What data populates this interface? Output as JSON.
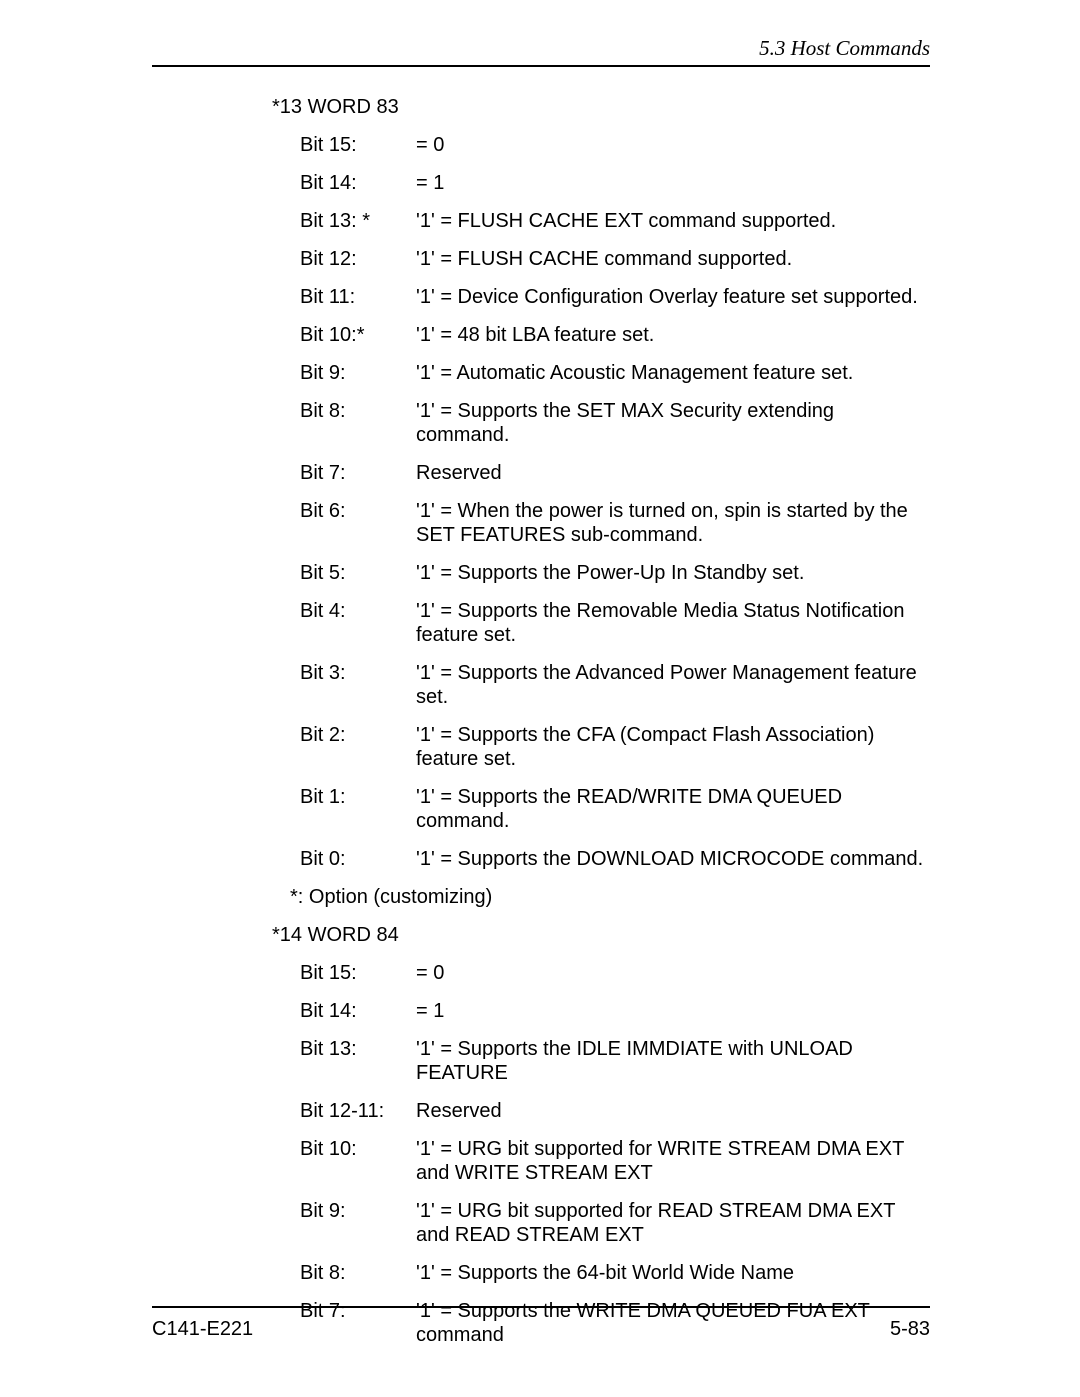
{
  "header": {
    "section": "5.3  Host Commands"
  },
  "words": [
    {
      "title": "*13 WORD 83",
      "bits": [
        {
          "label": "Bit 15:",
          "desc": "= 0"
        },
        {
          "label": "Bit 14:",
          "desc": "= 1"
        },
        {
          "label": "Bit 13: *",
          "desc": "'1' = FLUSH CACHE EXT command supported."
        },
        {
          "label": "Bit 12:",
          "desc": "'1' = FLUSH CACHE command supported."
        },
        {
          "label": "Bit 11:",
          "desc": "'1' = Device Configuration Overlay feature set supported."
        },
        {
          "label": "Bit 10:*",
          "desc": "'1' = 48 bit LBA feature set."
        },
        {
          "label": "Bit 9:",
          "desc": "'1' = Automatic Acoustic Management feature set."
        },
        {
          "label": "Bit 8:",
          "desc": "'1' = Supports the SET MAX Security extending command."
        },
        {
          "label": "Bit 7:",
          "desc": "Reserved"
        },
        {
          "label": "Bit 6:",
          "desc": "'1' = When the power is turned on, spin is started by the SET FEATURES sub-command."
        },
        {
          "label": "Bit 5:",
          "desc": "'1' = Supports the Power-Up In Standby set."
        },
        {
          "label": "Bit 4:",
          "desc": "'1' = Supports the Removable Media Status Notification feature set."
        },
        {
          "label": "Bit 3:",
          "desc": "'1' = Supports the Advanced Power Management feature set."
        },
        {
          "label": "Bit 2:",
          "desc": "'1' = Supports the CFA (Compact Flash Association) feature set."
        },
        {
          "label": "Bit 1:",
          "desc": "'1' = Supports the READ/WRITE DMA QUEUED command."
        },
        {
          "label": "Bit 0:",
          "desc": "'1' = Supports the DOWNLOAD MICROCODE command."
        }
      ],
      "note": "*:   Option (customizing)"
    },
    {
      "title": "*14 WORD 84",
      "bits": [
        {
          "label": "Bit 15:",
          "desc": "= 0"
        },
        {
          "label": "Bit 14:",
          "desc": "= 1"
        },
        {
          "label": "Bit 13:",
          "desc": "'1' = Supports the IDLE IMMDIATE with UNLOAD FEATURE"
        },
        {
          "label": "Bit 12-11:",
          "desc": "Reserved"
        },
        {
          "label": "Bit 10:",
          "desc": "'1' = URG bit supported for WRITE STREAM DMA EXT and WRITE STREAM EXT"
        },
        {
          "label": "Bit 9:",
          "desc": "'1' = URG bit supported for READ STREAM DMA EXT and READ STREAM EXT"
        },
        {
          "label": "Bit 8:",
          "desc": "'1' = Supports the 64-bit World Wide Name"
        },
        {
          "label": "Bit 7:",
          "desc": "'1' = Supports the WRITE DMA QUEUED FUA EXT command"
        }
      ],
      "note": null
    }
  ],
  "footer": {
    "left": "C141-E221",
    "right": "5-83"
  }
}
